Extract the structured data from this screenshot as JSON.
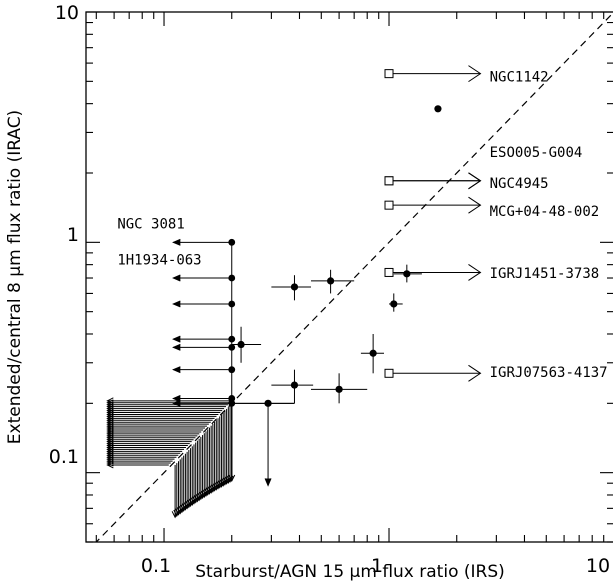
{
  "chart_data": {
    "type": "scatter",
    "title": "",
    "xlabel": "Starburst/AGN 15 μm flux ratio (IRS)",
    "ylabel": "Extended/central 8 μm flux ratio (IRAC)",
    "x_scale": "log",
    "y_scale": "log",
    "xlim": [
      0.045,
      10
    ],
    "ylim": [
      0.05,
      10
    ],
    "x_tick_labels": [
      "0.1",
      "1",
      "10"
    ],
    "y_tick_labels": [
      "0.1",
      "1",
      "10"
    ],
    "reference_line": {
      "style": "dashed",
      "equation": "y = x",
      "color": "#000000"
    },
    "colors": {
      "ink": "#000000",
      "background": "#ffffff"
    },
    "series": [
      {
        "marker": "filled-circle",
        "points": [
          {
            "x": 1.65,
            "y": 3.8,
            "xerr": [
              1.6,
              1.7
            ]
          },
          {
            "x": 0.38,
            "y": 0.64,
            "xerr": [
              0.3,
              0.45
            ],
            "yerr": [
              0.56,
              0.72
            ]
          },
          {
            "x": 0.55,
            "y": 0.68,
            "xerr": [
              0.45,
              0.7
            ],
            "yerr": [
              0.6,
              0.76
            ]
          },
          {
            "x": 1.2,
            "y": 0.73,
            "xerr": [
              1.05,
              1.4
            ],
            "yerr": [
              0.67,
              0.8
            ]
          },
          {
            "x": 1.05,
            "y": 0.54,
            "xerr": [
              1.0,
              1.15
            ],
            "yerr": [
              0.5,
              0.6
            ]
          },
          {
            "x": 0.85,
            "y": 0.33,
            "xerr": [
              0.75,
              0.95
            ],
            "yerr": [
              0.27,
              0.4
            ]
          },
          {
            "x": 0.6,
            "y": 0.23,
            "xerr": [
              0.45,
              0.8
            ],
            "yerr": [
              0.2,
              0.27
            ]
          },
          {
            "x": 0.38,
            "y": 0.24,
            "xerr": [
              0.3,
              0.46
            ],
            "yerr": [
              0.2,
              0.28
            ]
          },
          {
            "x": 0.22,
            "y": 0.36,
            "xerr": [
              0.2,
              0.25
            ],
            "yerr": [
              0.3,
              0.43
            ]
          },
          {
            "x": 0.29,
            "y": 0.2,
            "xerr": [
              0.2,
              0.38
            ]
          }
        ]
      },
      {
        "marker": "filled-circle-upper-limit-x",
        "points": [
          {
            "x": 0.2,
            "y": 1.0
          },
          {
            "x": 0.2,
            "y": 0.7
          },
          {
            "x": 0.2,
            "y": 0.54
          },
          {
            "x": 0.2,
            "y": 0.38
          },
          {
            "x": 0.2,
            "y": 0.35
          },
          {
            "x": 0.2,
            "y": 0.28
          },
          {
            "x": 0.2,
            "y": 0.21
          },
          {
            "x": 0.2,
            "y": 0.2
          }
        ]
      },
      {
        "marker": "open-square-lower-limit-x",
        "points": [
          {
            "x": 1.0,
            "y": 5.4
          },
          {
            "x": 1.0,
            "y": 1.85
          },
          {
            "x": 1.0,
            "y": 1.85
          },
          {
            "x": 1.0,
            "y": 1.45
          },
          {
            "x": 1.0,
            "y": 0.74
          },
          {
            "x": 1.0,
            "y": 0.27
          }
        ]
      }
    ],
    "annotations": [
      {
        "text": "NGC1142",
        "x": 2.8,
        "y": 5.0
      },
      {
        "text": "ESO005-G004",
        "x": 2.8,
        "y": 2.35
      },
      {
        "text": "NGC4945",
        "x": 2.8,
        "y": 1.72
      },
      {
        "text": "MCG+04-48-002",
        "x": 2.8,
        "y": 1.3
      },
      {
        "text": "IGRJ1451-3738",
        "x": 2.8,
        "y": 0.7
      },
      {
        "text": "IGRJ07563-4137",
        "x": 2.8,
        "y": 0.26
      },
      {
        "text": "NGC 3081",
        "x": 0.062,
        "y": 1.15
      },
      {
        "text": "1H1934-063",
        "x": 0.062,
        "y": 0.8
      }
    ]
  }
}
